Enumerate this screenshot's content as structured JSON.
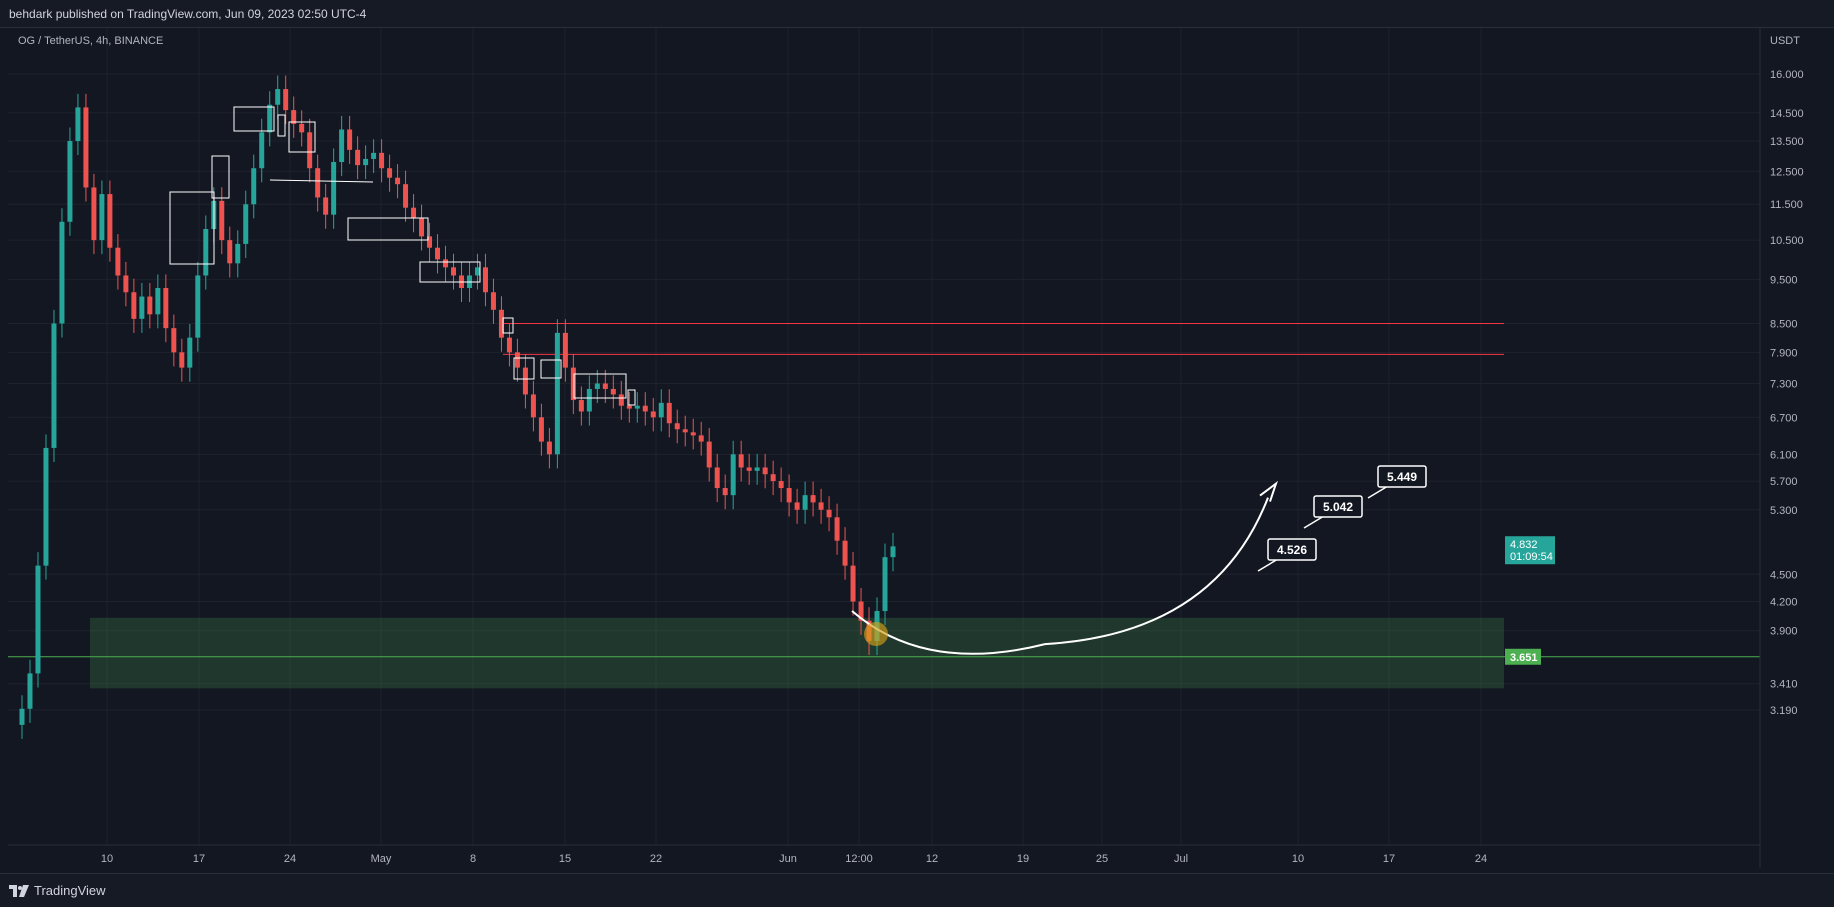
{
  "header": {
    "publish_text": "behdark published on TradingView.com, Jun 09, 2023 02:50 UTC-4"
  },
  "footer": {
    "logo_text": "TradingView",
    "logo_icon": "tradingview-logo-icon"
  },
  "chart_data": {
    "type": "candlestick",
    "symbol_label": "OG / TetherUS, 4h, BINANCE",
    "currency_label": "USDT",
    "y_scale": "log",
    "y_ticks": [
      "16.000",
      "14.500",
      "13.500",
      "12.500",
      "11.500",
      "10.500",
      "9.500",
      "8.500",
      "7.900",
      "7.300",
      "6.700",
      "6.100",
      "5.700",
      "5.300",
      "4.500",
      "4.200",
      "3.900",
      "3.410",
      "3.190"
    ],
    "x_ticks": [
      "10",
      "17",
      "24",
      "May",
      "8",
      "15",
      "22",
      "Jun",
      "12:00",
      "12",
      "19",
      "25",
      "Jul",
      "10",
      "17",
      "24"
    ],
    "grid": true,
    "current_price": {
      "value": "4.832",
      "countdown": "01:09:54",
      "color": "#26a69a"
    },
    "support_line": {
      "value": "3.651",
      "color": "#4caf50"
    },
    "support_zone": {
      "low": 3.37,
      "high": 4.03,
      "color": "#4caf50"
    },
    "resistance_lines": [
      {
        "value": 8.5,
        "color": "#f23645"
      },
      {
        "value": 7.86,
        "color": "#f23645"
      }
    ],
    "targets": [
      {
        "label": "4.526",
        "value": 4.526
      },
      {
        "label": "5.042",
        "value": 5.042
      },
      {
        "label": "5.449",
        "value": 5.449
      }
    ],
    "projection_path": {
      "start_price": 4.1,
      "bottom_price": 3.77,
      "end_price": 5.55
    },
    "series": [
      {
        "colors": {
          "up": "#26a69a",
          "down": "#ef5350"
        },
        "closes": [
          3.2,
          3.5,
          4.6,
          6.2,
          8.5,
          11.0,
          13.5,
          14.7,
          12.0,
          10.5,
          11.8,
          10.3,
          9.6,
          9.2,
          8.6,
          9.1,
          8.7,
          9.3,
          8.4,
          7.9,
          7.6,
          8.2,
          9.6,
          10.8,
          11.6,
          10.5,
          9.9,
          10.4,
          11.5,
          12.6,
          13.8,
          14.8,
          15.4,
          14.6,
          14.1,
          13.8,
          12.6,
          11.7,
          11.2,
          12.8,
          13.9,
          13.2,
          12.7,
          12.9,
          13.1,
          12.6,
          12.3,
          12.1,
          11.4,
          11.1,
          10.6,
          10.3,
          10.0,
          9.8,
          9.6,
          9.3,
          9.6,
          9.8,
          9.2,
          8.8,
          8.2,
          7.9,
          7.6,
          7.1,
          6.7,
          6.3,
          6.1,
          8.3,
          7.6,
          7.0,
          6.8,
          7.2,
          7.3,
          7.2,
          7.1,
          6.9,
          6.85,
          6.9,
          6.8,
          6.7,
          6.95,
          6.6,
          6.5,
          6.45,
          6.4,
          6.3,
          5.9,
          5.6,
          5.5,
          6.1,
          5.9,
          5.85,
          5.9,
          5.8,
          5.7,
          5.6,
          5.4,
          5.3,
          5.5,
          5.4,
          5.3,
          5.2,
          4.9,
          4.6,
          4.2,
          4.0,
          3.8,
          4.1,
          4.7,
          4.83
        ]
      }
    ]
  }
}
